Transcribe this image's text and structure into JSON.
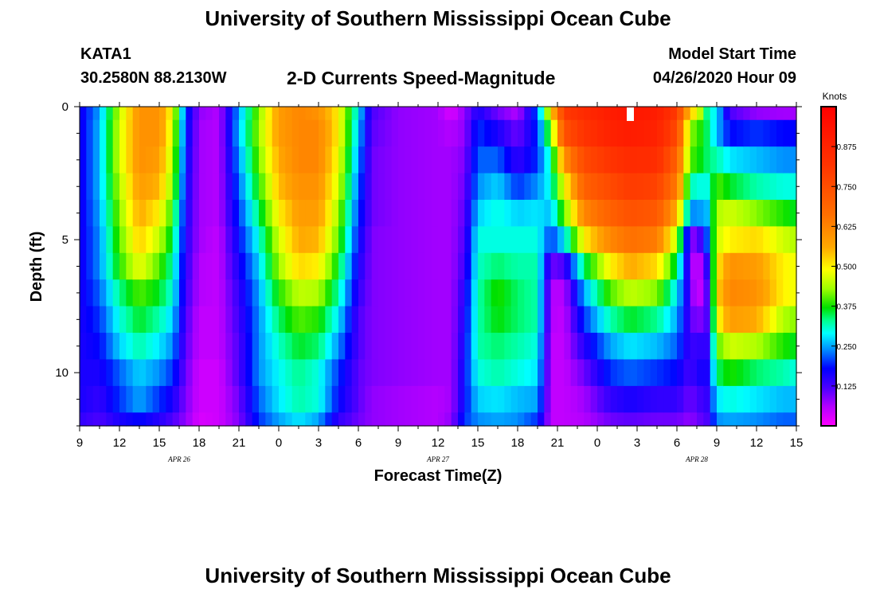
{
  "titles": {
    "top": "University of Southern Mississippi Ocean Cube",
    "bottom": "University of Southern Mississippi Ocean Cube"
  },
  "station": {
    "id": "KATA1",
    "coords": "30.2580N 88.2130W"
  },
  "model_start": {
    "label": "Model Start Time",
    "value": "04/26/2020 Hour 09"
  },
  "chart_data": {
    "type": "heatmap",
    "title": "2-D Currents Speed-Magnitude",
    "xlabel": "Forecast Time(Z)",
    "ylabel": "Depth (ft)",
    "x_range_hours": [
      0,
      54
    ],
    "x_ticks": [
      {
        "h": 0,
        "label": "9"
      },
      {
        "h": 3,
        "label": "12"
      },
      {
        "h": 6,
        "label": "15"
      },
      {
        "h": 9,
        "label": "18"
      },
      {
        "h": 12,
        "label": "21"
      },
      {
        "h": 15,
        "label": "0"
      },
      {
        "h": 18,
        "label": "3"
      },
      {
        "h": 21,
        "label": "6"
      },
      {
        "h": 24,
        "label": "9"
      },
      {
        "h": 27,
        "label": "12"
      },
      {
        "h": 30,
        "label": "15"
      },
      {
        "h": 33,
        "label": "18"
      },
      {
        "h": 36,
        "label": "21"
      },
      {
        "h": 39,
        "label": "0"
      },
      {
        "h": 42,
        "label": "3"
      },
      {
        "h": 45,
        "label": "6"
      },
      {
        "h": 48,
        "label": "9"
      },
      {
        "h": 51,
        "label": "12"
      },
      {
        "h": 54,
        "label": "15"
      }
    ],
    "date_labels": [
      {
        "h": 7.5,
        "label": "APR 26"
      },
      {
        "h": 27,
        "label": "APR 27"
      },
      {
        "h": 46.5,
        "label": "APR 28"
      }
    ],
    "y_range_ft": [
      0,
      12
    ],
    "y_ticks": [
      0,
      5,
      10
    ],
    "depths_ft": [
      0,
      1,
      2,
      3,
      4,
      5,
      6,
      7,
      8,
      9,
      10,
      11,
      12
    ],
    "colorbar": {
      "label": "Knots",
      "range": [
        0.0,
        1.0
      ],
      "ticks": [
        "0.125",
        "0.250",
        "0.375",
        "0.500",
        "0.625",
        "0.750",
        "0.875"
      ]
    },
    "profiles": [
      {
        "h": 0,
        "v": [
          0.16,
          0.16,
          0.16,
          0.16,
          0.16,
          0.16,
          0.16,
          0.16,
          0.16,
          0.16,
          0.16,
          0.16,
          0.14
        ]
      },
      {
        "h": 1.5,
        "v": [
          0.25,
          0.26,
          0.26,
          0.26,
          0.25,
          0.24,
          0.24,
          0.22,
          0.2,
          0.18,
          0.16,
          0.14,
          0.12
        ]
      },
      {
        "h": 3,
        "v": [
          0.45,
          0.46,
          0.46,
          0.44,
          0.42,
          0.4,
          0.38,
          0.33,
          0.3,
          0.27,
          0.22,
          0.2,
          0.16
        ]
      },
      {
        "h": 4.5,
        "v": [
          0.6,
          0.6,
          0.6,
          0.58,
          0.56,
          0.53,
          0.48,
          0.4,
          0.36,
          0.32,
          0.27,
          0.25,
          0.18
        ]
      },
      {
        "h": 6,
        "v": [
          0.6,
          0.6,
          0.58,
          0.55,
          0.5,
          0.45,
          0.4,
          0.36,
          0.32,
          0.28,
          0.24,
          0.2,
          0.15
        ]
      },
      {
        "h": 7,
        "v": [
          0.48,
          0.46,
          0.44,
          0.42,
          0.38,
          0.35,
          0.32,
          0.3,
          0.27,
          0.24,
          0.2,
          0.16,
          0.12
        ]
      },
      {
        "h": 8,
        "v": [
          0.2,
          0.19,
          0.18,
          0.17,
          0.16,
          0.15,
          0.14,
          0.13,
          0.12,
          0.11,
          0.1,
          0.09,
          0.08
        ]
      },
      {
        "h": 9,
        "v": [
          0.08,
          0.07,
          0.07,
          0.07,
          0.07,
          0.07,
          0.06,
          0.06,
          0.05,
          0.05,
          0.04,
          0.04,
          0.03
        ]
      },
      {
        "h": 10.5,
        "v": [
          0.06,
          0.06,
          0.06,
          0.06,
          0.06,
          0.05,
          0.05,
          0.05,
          0.05,
          0.05,
          0.04,
          0.04,
          0.04
        ]
      },
      {
        "h": 12,
        "v": [
          0.25,
          0.26,
          0.24,
          0.22,
          0.2,
          0.18,
          0.16,
          0.14,
          0.13,
          0.12,
          0.12,
          0.1,
          0.09
        ]
      },
      {
        "h": 13.5,
        "v": [
          0.42,
          0.43,
          0.41,
          0.38,
          0.34,
          0.3,
          0.27,
          0.25,
          0.24,
          0.24,
          0.24,
          0.22,
          0.2
        ]
      },
      {
        "h": 15,
        "v": [
          0.58,
          0.58,
          0.56,
          0.54,
          0.5,
          0.46,
          0.43,
          0.38,
          0.34,
          0.31,
          0.29,
          0.28,
          0.25
        ]
      },
      {
        "h": 16.5,
        "v": [
          0.62,
          0.62,
          0.62,
          0.6,
          0.58,
          0.56,
          0.52,
          0.45,
          0.4,
          0.36,
          0.33,
          0.32,
          0.28
        ]
      },
      {
        "h": 18,
        "v": [
          0.6,
          0.62,
          0.62,
          0.6,
          0.58,
          0.55,
          0.5,
          0.44,
          0.38,
          0.34,
          0.3,
          0.3,
          0.25
        ]
      },
      {
        "h": 19.5,
        "v": [
          0.5,
          0.5,
          0.48,
          0.46,
          0.43,
          0.4,
          0.36,
          0.32,
          0.28,
          0.24,
          0.2,
          0.18,
          0.14
        ]
      },
      {
        "h": 21,
        "v": [
          0.28,
          0.26,
          0.24,
          0.22,
          0.2,
          0.18,
          0.16,
          0.14,
          0.12,
          0.12,
          0.11,
          0.11,
          0.1
        ]
      },
      {
        "h": 22,
        "v": [
          0.12,
          0.11,
          0.1,
          0.1,
          0.1,
          0.09,
          0.09,
          0.09,
          0.09,
          0.09,
          0.09,
          0.08,
          0.08
        ]
      },
      {
        "h": 24,
        "v": [
          0.08,
          0.08,
          0.08,
          0.08,
          0.08,
          0.08,
          0.08,
          0.08,
          0.08,
          0.08,
          0.08,
          0.07,
          0.07
        ]
      },
      {
        "h": 27,
        "v": [
          0.07,
          0.07,
          0.07,
          0.07,
          0.07,
          0.07,
          0.07,
          0.07,
          0.07,
          0.07,
          0.07,
          0.06,
          0.06
        ]
      },
      {
        "h": 28,
        "v": [
          0.03,
          0.06,
          0.07,
          0.07,
          0.07,
          0.07,
          0.07,
          0.07,
          0.07,
          0.07,
          0.07,
          0.07,
          0.08
        ]
      },
      {
        "h": 29,
        "v": [
          0.08,
          0.08,
          0.09,
          0.1,
          0.11,
          0.12,
          0.13,
          0.15,
          0.16,
          0.17,
          0.18,
          0.18,
          0.2
        ]
      },
      {
        "h": 30,
        "v": [
          0.16,
          0.2,
          0.22,
          0.24,
          0.27,
          0.3,
          0.31,
          0.32,
          0.32,
          0.32,
          0.3,
          0.27,
          0.24
        ]
      },
      {
        "h": 31.5,
        "v": [
          0.1,
          0.16,
          0.22,
          0.27,
          0.3,
          0.3,
          0.34,
          0.38,
          0.37,
          0.34,
          0.32,
          0.28,
          0.25
        ]
      },
      {
        "h": 33,
        "v": [
          0.06,
          0.1,
          0.14,
          0.2,
          0.27,
          0.3,
          0.32,
          0.34,
          0.34,
          0.32,
          0.3,
          0.26,
          0.24
        ]
      },
      {
        "h": 34.5,
        "v": [
          0.22,
          0.2,
          0.2,
          0.24,
          0.28,
          0.3,
          0.32,
          0.32,
          0.32,
          0.3,
          0.28,
          0.25,
          0.2
        ]
      },
      {
        "h": 35.5,
        "v": [
          0.5,
          0.4,
          0.32,
          0.3,
          0.26,
          0.2,
          0.1,
          0.06,
          0.06,
          0.05,
          0.05,
          0.05,
          0.05
        ]
      },
      {
        "h": 36.5,
        "v": [
          0.8,
          0.74,
          0.6,
          0.48,
          0.4,
          0.28,
          0.12,
          0.06,
          0.05,
          0.05,
          0.05,
          0.05,
          0.05
        ]
      },
      {
        "h": 38,
        "v": [
          0.85,
          0.82,
          0.76,
          0.7,
          0.62,
          0.5,
          0.34,
          0.25,
          0.2,
          0.15,
          0.1,
          0.07,
          0.06
        ]
      },
      {
        "h": 40,
        "v": [
          0.9,
          0.88,
          0.82,
          0.76,
          0.7,
          0.62,
          0.5,
          0.4,
          0.32,
          0.25,
          0.2,
          0.14,
          0.1
        ]
      },
      {
        "h": 41.5,
        "v": [
          0.92,
          0.9,
          0.85,
          0.8,
          0.74,
          0.66,
          0.56,
          0.45,
          0.36,
          0.28,
          0.22,
          0.16,
          0.11
        ]
      },
      {
        "h": 43.5,
        "v": [
          0.9,
          0.88,
          0.84,
          0.78,
          0.72,
          0.64,
          0.52,
          0.42,
          0.33,
          0.26,
          0.2,
          0.14,
          0.1
        ]
      },
      {
        "h": 45,
        "v": [
          0.8,
          0.76,
          0.7,
          0.64,
          0.56,
          0.44,
          0.34,
          0.28,
          0.25,
          0.22,
          0.18,
          0.14,
          0.1
        ]
      },
      {
        "h": 46,
        "v": [
          0.52,
          0.42,
          0.4,
          0.32,
          0.24,
          0.1,
          0.1,
          0.12,
          0.12,
          0.13,
          0.12,
          0.1,
          0.08
        ]
      },
      {
        "h": 46.5,
        "v": [
          0.5,
          0.4,
          0.38,
          0.3,
          0.24,
          0.08,
          0.02,
          0.02,
          0.08,
          0.14,
          0.16,
          0.12,
          0.1
        ]
      },
      {
        "h": 47.3,
        "v": [
          0.32,
          0.34,
          0.34,
          0.3,
          0.26,
          0.22,
          0.15,
          0.12,
          0.12,
          0.14,
          0.16,
          0.14,
          0.12
        ]
      },
      {
        "h": 48,
        "v": [
          0.28,
          0.26,
          0.32,
          0.4,
          0.44,
          0.46,
          0.5,
          0.52,
          0.48,
          0.4,
          0.34,
          0.28,
          0.24
        ]
      },
      {
        "h": 49,
        "v": [
          0.12,
          0.18,
          0.28,
          0.36,
          0.46,
          0.5,
          0.6,
          0.62,
          0.58,
          0.46,
          0.38,
          0.3,
          0.25
        ]
      },
      {
        "h": 51,
        "v": [
          0.08,
          0.2,
          0.26,
          0.32,
          0.42,
          0.52,
          0.58,
          0.6,
          0.56,
          0.44,
          0.34,
          0.28,
          0.24
        ]
      },
      {
        "h": 53,
        "v": [
          0.07,
          0.18,
          0.24,
          0.3,
          0.38,
          0.46,
          0.5,
          0.5,
          0.44,
          0.38,
          0.32,
          0.26,
          0.22
        ]
      },
      {
        "h": 54,
        "v": [
          0.07,
          0.18,
          0.24,
          0.3,
          0.36,
          0.44,
          0.48,
          0.48,
          0.42,
          0.36,
          0.3,
          0.26,
          0.22
        ]
      }
    ]
  }
}
